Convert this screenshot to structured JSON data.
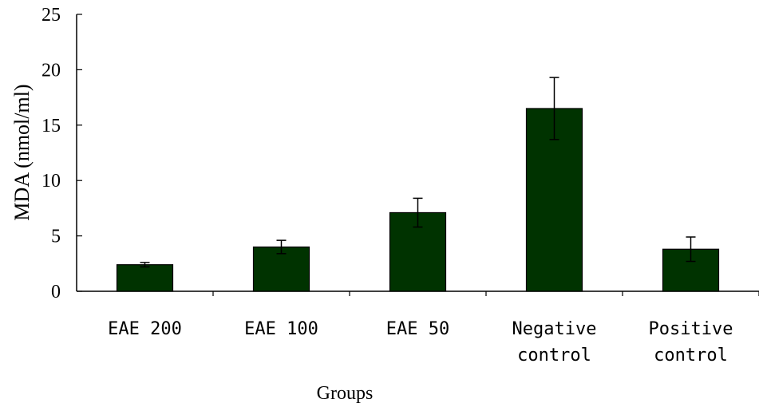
{
  "chart_data": {
    "type": "bar",
    "categories": [
      [
        "EAE 200"
      ],
      [
        "EAE 100"
      ],
      [
        "EAE 50"
      ],
      [
        "Negative",
        "control"
      ],
      [
        "Positive",
        "control"
      ]
    ],
    "values": [
      2.4,
      4.0,
      7.1,
      16.5,
      3.8
    ],
    "errors": [
      0.2,
      0.6,
      1.3,
      2.8,
      1.1
    ],
    "xlabel": "Groups",
    "ylabel": "MDA (nmol/ml)",
    "ylim": [
      0,
      25
    ],
    "yticks": [
      "0",
      "5",
      "10",
      "15",
      "20",
      "25"
    ],
    "grid": false,
    "bar_color": "#003300"
  }
}
